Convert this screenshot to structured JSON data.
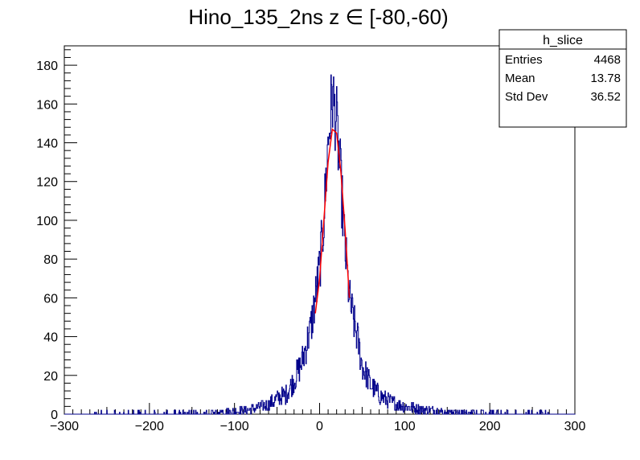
{
  "chart_data": {
    "type": "histogram",
    "title": "Hino_135_2ns z  ∈ [-80,-60)",
    "xlim": [
      -300,
      300
    ],
    "ylim": [
      0,
      190
    ],
    "x_ticks": [
      -300,
      -200,
      -100,
      0,
      100,
      200,
      300
    ],
    "x_tick_labels": [
      "−300",
      "−200",
      "−100",
      "0",
      "100",
      "200",
      "300"
    ],
    "y_ticks": [
      0,
      20,
      40,
      60,
      80,
      100,
      120,
      140,
      160,
      180
    ],
    "y_tick_labels": [
      "0",
      "20",
      "40",
      "60",
      "80",
      "100",
      "120",
      "140",
      "160",
      "180"
    ],
    "grid": false,
    "histogram": {
      "color": "#00008b",
      "profile": [
        [
          -300,
          0
        ],
        [
          -150,
          0.5
        ],
        [
          -100,
          1.5
        ],
        [
          -80,
          2.5
        ],
        [
          -60,
          5
        ],
        [
          -50,
          8
        ],
        [
          -40,
          10
        ],
        [
          -30,
          17
        ],
        [
          -20,
          28
        ],
        [
          -10,
          45
        ],
        [
          -5,
          60
        ],
        [
          0,
          75
        ],
        [
          5,
          100
        ],
        [
          10,
          140
        ],
        [
          15,
          165
        ],
        [
          20,
          150
        ],
        [
          25,
          120
        ],
        [
          30,
          85
        ],
        [
          35,
          60
        ],
        [
          40,
          48
        ],
        [
          45,
          38
        ],
        [
          50,
          25
        ],
        [
          60,
          15
        ],
        [
          70,
          10
        ],
        [
          80,
          7
        ],
        [
          100,
          4
        ],
        [
          120,
          2.5
        ],
        [
          150,
          1
        ],
        [
          200,
          0.5
        ],
        [
          300,
          0
        ]
      ]
    },
    "fit": {
      "type": "gaussian",
      "color": "#ff0000",
      "x": [
        -5,
        0,
        5,
        10,
        15,
        20,
        25,
        30,
        35
      ],
      "y": [
        52,
        70,
        100,
        130,
        147,
        145,
        125,
        95,
        60
      ]
    },
    "legend": {
      "placement": "top-right",
      "title": "h_slice",
      "rows": [
        {
          "label": "Entries",
          "value": "4468"
        },
        {
          "label": "Mean",
          "value": "13.78"
        },
        {
          "label": "Std Dev",
          "value": "36.52"
        }
      ]
    }
  }
}
